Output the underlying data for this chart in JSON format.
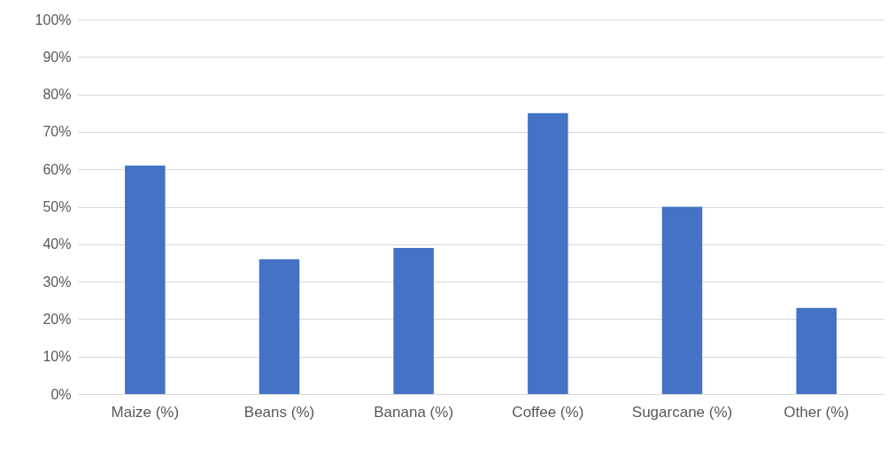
{
  "chart_data": {
    "type": "bar",
    "categories": [
      "Maize (%)",
      "Beans (%)",
      "Banana (%)",
      "Coffee (%)",
      "Sugarcane (%)",
      "Other (%)"
    ],
    "values": [
      61,
      36,
      39,
      75,
      50,
      23
    ],
    "color": "#4472c4",
    "ylim": [
      0,
      100
    ],
    "yticks": [
      {
        "value": 0,
        "label": "0%"
      },
      {
        "value": 10,
        "label": "10%"
      },
      {
        "value": 20,
        "label": "20%"
      },
      {
        "value": 30,
        "label": "30%"
      },
      {
        "value": 40,
        "label": "40%"
      },
      {
        "value": 50,
        "label": "50%"
      },
      {
        "value": 60,
        "label": "60%"
      },
      {
        "value": 70,
        "label": "70%"
      },
      {
        "value": 80,
        "label": "80%"
      },
      {
        "value": 90,
        "label": "90%"
      },
      {
        "value": 100,
        "label": "100%"
      }
    ],
    "grid": "y"
  }
}
